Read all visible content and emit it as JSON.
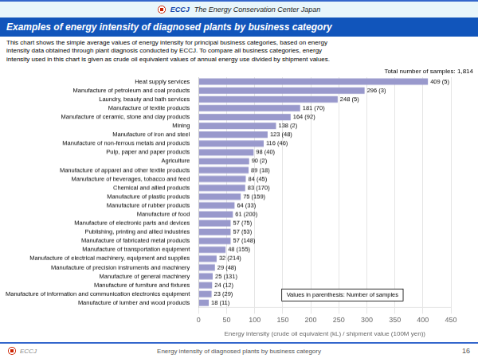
{
  "chart_data": {
    "type": "bar",
    "orientation": "horizontal",
    "title": "Examples of energy intensity of diagnosed plants by business category",
    "subtitle": "This chart shows the simple average values of energy intensity for principal business categories, based on energy\nintensity data obtained through plant diagnosis conducted by ECCJ. To compare all business categories, energy\nintensity used in this chart is given as crude oil equivalent values of annual energy use divided by shipment values.",
    "categories": [
      "Heat supply services",
      "Manufacture of petroleum and coal products",
      "Laundry, beauty and bath services",
      "Manufacture of textile products",
      "Manufacture of ceramic, stone and clay products",
      "Mining",
      "Manufacture of iron and steel",
      "Manufacture of non-ferrous metals and products",
      "Pulp, paper and paper products",
      "Agriculture",
      "Manufacture of apparel and other textile products",
      "Manufacture of beverages, tobacco and feed",
      "Chemical and allied products",
      "Manufacture of plastic products",
      "Manufacture of rubber products",
      "Manufacture of food",
      "Manufacture of electronic parts and devices",
      "Publishing, printing and allied industries",
      "Manufacture of fabricated metal products",
      "Manufacture of transportation equipment",
      "Manufacture of electrical machinery, equipment and supplies",
      "Manufacture of precision instruments and machinery",
      "Manufacture of general machinery",
      "Manufacture of furniture and fixtures",
      "Manufacture of information and communication electronics equipment",
      "Manufacture of lumber and wood products"
    ],
    "values": [
      409,
      296,
      248,
      181,
      164,
      138,
      123,
      116,
      98,
      90,
      89,
      84,
      83,
      75,
      64,
      61,
      57,
      57,
      57,
      48,
      32,
      29,
      25,
      24,
      23,
      18
    ],
    "value_labels": [
      "409 (5)",
      "296 (3)",
      "248 (5)",
      "181 (70)",
      "164 (92)",
      "138 (2)",
      "123 (48)",
      "116 (46)",
      "98 (40)",
      "90 (2)",
      "89 (18)",
      "84 (45)",
      "83 (170)",
      "75 (159)",
      "64 (33)",
      "61 (200)",
      "57 (75)",
      "57 (53)",
      "57 (148)",
      "48 (155)",
      "32 (214)",
      "29 (48)",
      "25 (131)",
      "24 (12)",
      "23 (29)",
      "18 (11)"
    ],
    "data_labels": true,
    "color": "#9999cc",
    "xlabel": "Energy intensity (crude oil equivalent (kL) / shipment value (100M yen))",
    "xlim": [
      0,
      450
    ],
    "xticks": [
      0,
      50,
      100,
      150,
      200,
      250,
      300,
      350,
      400,
      450
    ],
    "grid": true,
    "annotations": [
      "Total number of samples: 1,814",
      "Values in parenthesis: Number of samples",
      "ECCJ",
      "The Energy Conservation Center Japan",
      "ECCJ",
      "Energy intensity of diagnosed plants by business category",
      "16"
    ]
  }
}
